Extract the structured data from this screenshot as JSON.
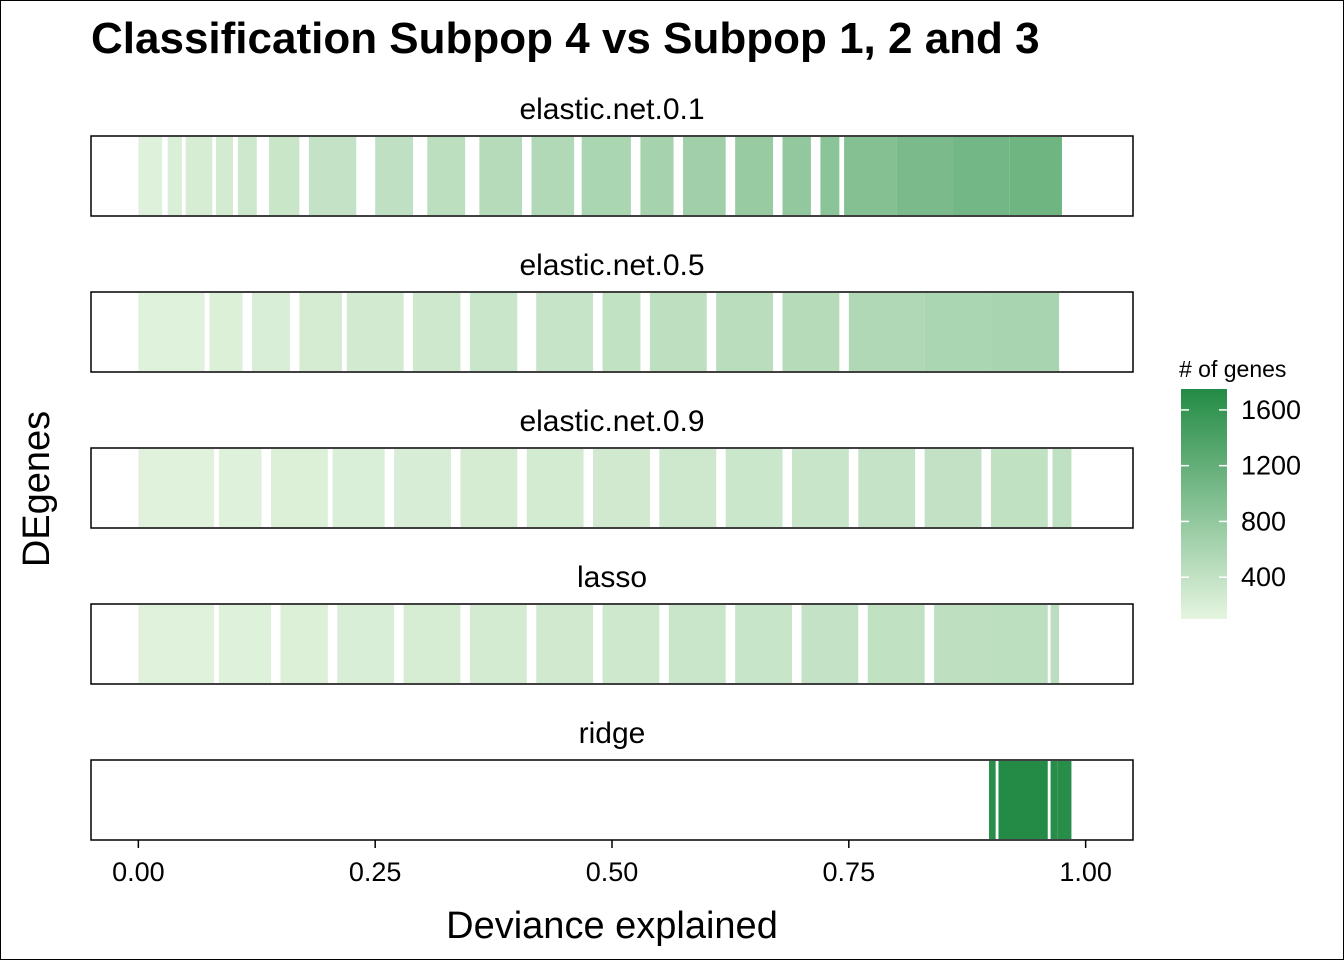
{
  "chart_data": {
    "type": "heatmap",
    "title": "Classification Subpop 4 vs Subpop 1, 2 and 3",
    "xlabel": "Deviance explained",
    "ylabel": "DEgenes",
    "xlim": [
      -0.05,
      1.05
    ],
    "x_ticks": [
      "0.00",
      "0.25",
      "0.50",
      "0.75",
      "1.00"
    ],
    "x_tick_values": [
      0,
      0.25,
      0.5,
      0.75,
      1.0
    ],
    "legend": {
      "title": "# of genes",
      "ticks": [
        "400",
        "800",
        "1200",
        "1600"
      ],
      "tick_values": [
        400,
        800,
        1200,
        1600
      ],
      "range": [
        100,
        1750
      ],
      "low_color": "#e5f5e0",
      "high_color": "#238b45",
      "placement": "right"
    },
    "panels": [
      {
        "name": "elastic.net.0.1",
        "segments": [
          {
            "from": 0.0,
            "to": 0.025,
            "genes": 160
          },
          {
            "from": 0.031,
            "to": 0.046,
            "genes": 190
          },
          {
            "from": 0.05,
            "to": 0.078,
            "genes": 230
          },
          {
            "from": 0.082,
            "to": 0.1,
            "genes": 260
          },
          {
            "from": 0.105,
            "to": 0.125,
            "genes": 300
          },
          {
            "from": 0.138,
            "to": 0.17,
            "genes": 340
          },
          {
            "from": 0.18,
            "to": 0.23,
            "genes": 380
          },
          {
            "from": 0.25,
            "to": 0.29,
            "genes": 420
          },
          {
            "from": 0.305,
            "to": 0.345,
            "genes": 450
          },
          {
            "from": 0.36,
            "to": 0.405,
            "genes": 500
          },
          {
            "from": 0.415,
            "to": 0.46,
            "genes": 540
          },
          {
            "from": 0.468,
            "to": 0.52,
            "genes": 590
          },
          {
            "from": 0.53,
            "to": 0.565,
            "genes": 640
          },
          {
            "from": 0.575,
            "to": 0.62,
            "genes": 690
          },
          {
            "from": 0.63,
            "to": 0.67,
            "genes": 750
          },
          {
            "from": 0.68,
            "to": 0.71,
            "genes": 800
          },
          {
            "from": 0.72,
            "to": 0.74,
            "genes": 860
          },
          {
            "from": 0.745,
            "to": 0.8,
            "genes": 920
          },
          {
            "from": 0.8,
            "to": 0.86,
            "genes": 1000
          },
          {
            "from": 0.86,
            "to": 0.92,
            "genes": 1060
          },
          {
            "from": 0.92,
            "to": 0.975,
            "genes": 1100
          }
        ]
      },
      {
        "name": "elastic.net.0.5",
        "segments": [
          {
            "from": 0.0,
            "to": 0.07,
            "genes": 150
          },
          {
            "from": 0.075,
            "to": 0.11,
            "genes": 180
          },
          {
            "from": 0.12,
            "to": 0.16,
            "genes": 210
          },
          {
            "from": 0.17,
            "to": 0.215,
            "genes": 240
          },
          {
            "from": 0.22,
            "to": 0.28,
            "genes": 270
          },
          {
            "from": 0.29,
            "to": 0.34,
            "genes": 300
          },
          {
            "from": 0.35,
            "to": 0.4,
            "genes": 330
          },
          {
            "from": 0.42,
            "to": 0.48,
            "genes": 360
          },
          {
            "from": 0.49,
            "to": 0.53,
            "genes": 400
          },
          {
            "from": 0.54,
            "to": 0.6,
            "genes": 430
          },
          {
            "from": 0.61,
            "to": 0.67,
            "genes": 470
          },
          {
            "from": 0.68,
            "to": 0.74,
            "genes": 510
          },
          {
            "from": 0.75,
            "to": 0.83,
            "genes": 550
          },
          {
            "from": 0.83,
            "to": 0.9,
            "genes": 590
          },
          {
            "from": 0.9,
            "to": 0.972,
            "genes": 620
          }
        ]
      },
      {
        "name": "elastic.net.0.9",
        "segments": [
          {
            "from": 0.0,
            "to": 0.08,
            "genes": 140
          },
          {
            "from": 0.085,
            "to": 0.13,
            "genes": 160
          },
          {
            "from": 0.14,
            "to": 0.2,
            "genes": 180
          },
          {
            "from": 0.205,
            "to": 0.26,
            "genes": 200
          },
          {
            "from": 0.27,
            "to": 0.33,
            "genes": 220
          },
          {
            "from": 0.34,
            "to": 0.4,
            "genes": 240
          },
          {
            "from": 0.41,
            "to": 0.47,
            "genes": 260
          },
          {
            "from": 0.48,
            "to": 0.54,
            "genes": 280
          },
          {
            "from": 0.55,
            "to": 0.61,
            "genes": 300
          },
          {
            "from": 0.62,
            "to": 0.68,
            "genes": 320
          },
          {
            "from": 0.69,
            "to": 0.75,
            "genes": 345
          },
          {
            "from": 0.76,
            "to": 0.82,
            "genes": 370
          },
          {
            "from": 0.83,
            "to": 0.89,
            "genes": 390
          },
          {
            "from": 0.9,
            "to": 0.96,
            "genes": 410
          },
          {
            "from": 0.965,
            "to": 0.985,
            "genes": 420
          }
        ]
      },
      {
        "name": "lasso",
        "segments": [
          {
            "from": 0.0,
            "to": 0.08,
            "genes": 140
          },
          {
            "from": 0.085,
            "to": 0.14,
            "genes": 160
          },
          {
            "from": 0.15,
            "to": 0.2,
            "genes": 180
          },
          {
            "from": 0.21,
            "to": 0.27,
            "genes": 205
          },
          {
            "from": 0.28,
            "to": 0.34,
            "genes": 230
          },
          {
            "from": 0.35,
            "to": 0.41,
            "genes": 255
          },
          {
            "from": 0.42,
            "to": 0.48,
            "genes": 280
          },
          {
            "from": 0.49,
            "to": 0.55,
            "genes": 305
          },
          {
            "from": 0.56,
            "to": 0.62,
            "genes": 330
          },
          {
            "from": 0.63,
            "to": 0.69,
            "genes": 355
          },
          {
            "from": 0.7,
            "to": 0.76,
            "genes": 380
          },
          {
            "from": 0.77,
            "to": 0.83,
            "genes": 405
          },
          {
            "from": 0.84,
            "to": 0.9,
            "genes": 430
          },
          {
            "from": 0.9,
            "to": 0.96,
            "genes": 450
          },
          {
            "from": 0.963,
            "to": 0.972,
            "genes": 460
          }
        ]
      },
      {
        "name": "ridge",
        "segments": [
          {
            "from": 0.898,
            "to": 0.905,
            "genes": 1700
          },
          {
            "from": 0.908,
            "to": 0.96,
            "genes": 1750
          },
          {
            "from": 0.963,
            "to": 0.97,
            "genes": 1720
          },
          {
            "from": 0.97,
            "to": 0.985,
            "genes": 1720
          }
        ]
      }
    ]
  }
}
